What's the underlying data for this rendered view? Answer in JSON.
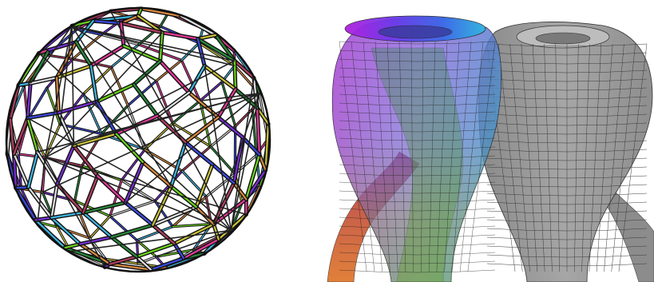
{
  "figures": {
    "left": {
      "kind": "wireframe-polyhedron",
      "palette": [
        "#e0e0e0",
        "#7a2fd8",
        "#3b4be0",
        "#6ad21e",
        "#c9c23a",
        "#d88a40",
        "#e63a9a",
        "#3fb6e0",
        "#2a8a3a",
        "#b04060"
      ]
    },
    "right": {
      "kind": "surface-pair",
      "colored": true,
      "gray_fill": "#9a9a9a"
    }
  }
}
